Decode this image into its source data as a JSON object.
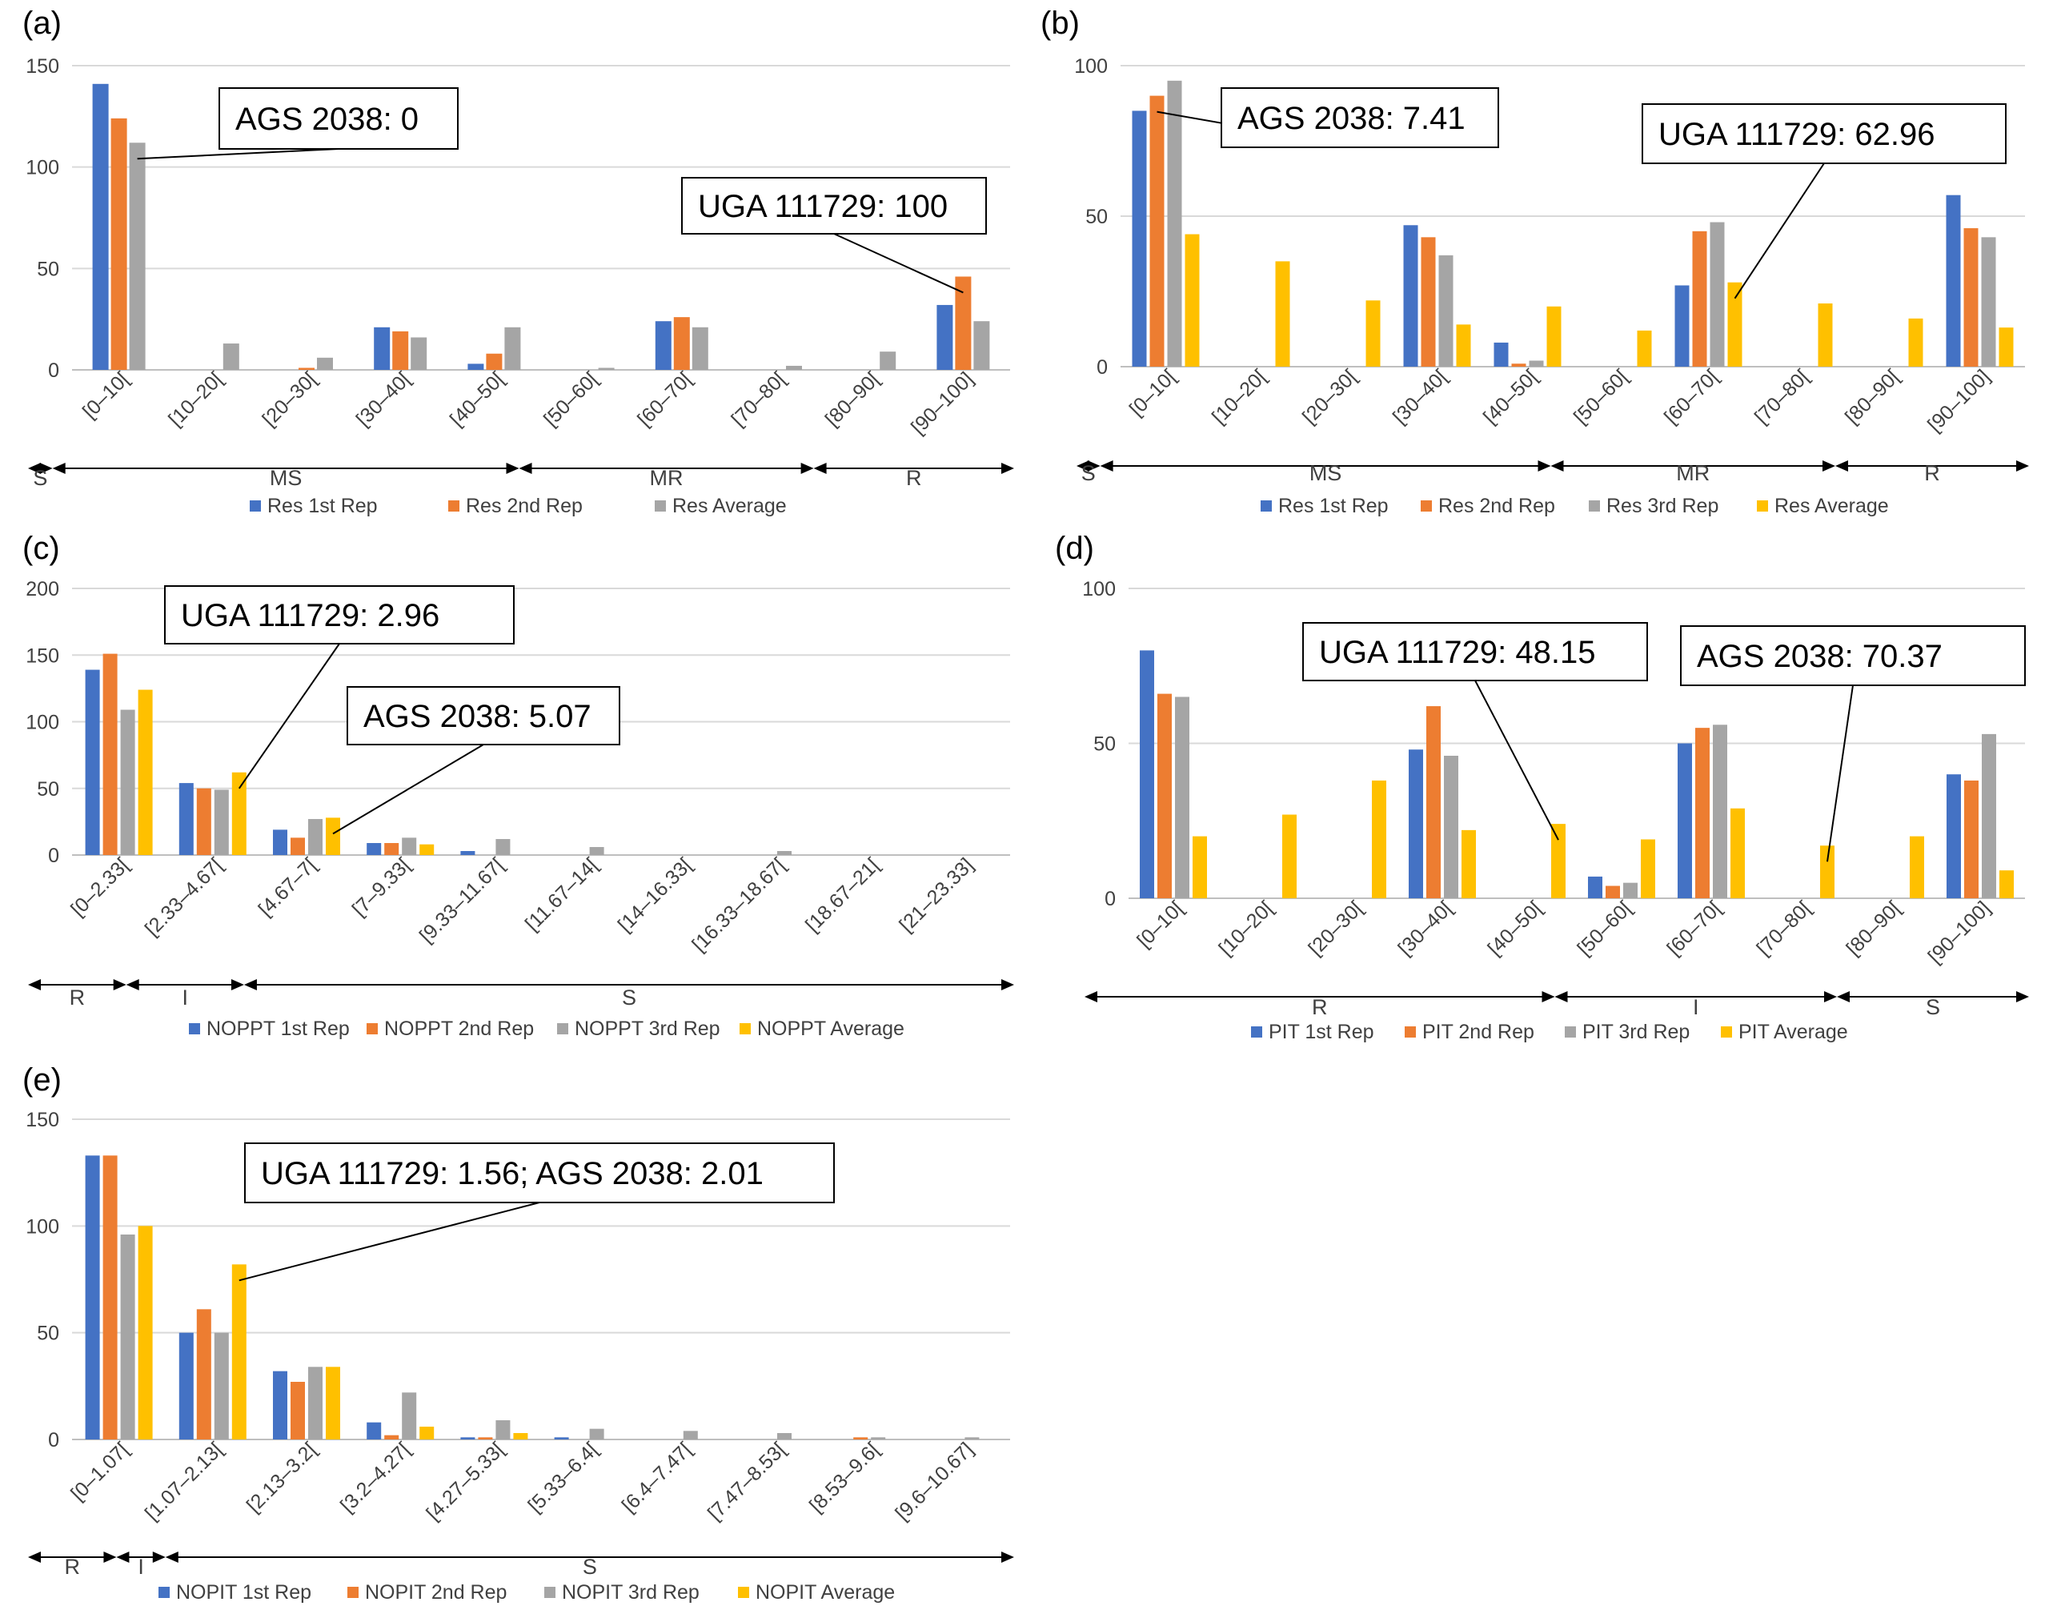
{
  "figure": {
    "colors": {
      "s1": "#4472C4",
      "s2": "#ED7D31",
      "s3": "#A5A5A5",
      "s4": "#FFC000",
      "grid": "#D9D9D9",
      "text": "#404040",
      "line": "#000000"
    }
  },
  "chart_data": [
    {
      "panel": "(a)",
      "type": "bar",
      "categories": [
        "[0–10[",
        "[10–20[",
        "[20–30[",
        "[30–40[",
        "[40–50[",
        "[50–60[",
        "[60–70[",
        "[70–80[",
        "[80–90[",
        "[90–100]"
      ],
      "ylim": [
        0,
        150
      ],
      "yticks": [
        0,
        50,
        100,
        150
      ],
      "series": [
        {
          "name": "Res 1st Rep",
          "color": "#4472C4",
          "values": [
            141,
            0,
            0,
            21,
            3,
            0,
            24,
            0,
            0,
            32
          ]
        },
        {
          "name": "Res 2nd Rep",
          "color": "#ED7D31",
          "values": [
            124,
            0,
            1,
            19,
            8,
            0,
            26,
            0,
            0,
            46
          ]
        },
        {
          "name": "Res Average",
          "color": "#A5A5A5",
          "values": [
            112,
            13,
            6,
            16,
            21,
            1,
            21,
            2,
            9,
            24
          ]
        }
      ],
      "groups": [
        {
          "label": "S",
          "from": 0,
          "to": 0.25
        },
        {
          "label": "MS",
          "from": 0.25,
          "to": 5
        },
        {
          "label": "MR",
          "from": 5,
          "to": 8
        },
        {
          "label": "R",
          "from": 8,
          "to": 10
        }
      ],
      "annotations": [
        {
          "text": "AGS 2038: 0",
          "cat": 0,
          "series": 2
        },
        {
          "text": "UGA 111729: 100",
          "cat": 9,
          "series": 1
        }
      ]
    },
    {
      "panel": "(b)",
      "type": "bar",
      "categories": [
        "[0–10[",
        "[10–20[",
        "[20–30[",
        "[30–40[",
        "[40–50[",
        "[50–60[",
        "[60–70[",
        "[70–80[",
        "[80–90[",
        "[90–100]"
      ],
      "ylim": [
        0,
        100
      ],
      "yticks": [
        0,
        50,
        100
      ],
      "series": [
        {
          "name": "Res 1st Rep",
          "color": "#4472C4",
          "values": [
            85,
            0,
            0,
            47,
            8,
            0,
            27,
            0,
            0,
            57
          ]
        },
        {
          "name": "Res 2nd Rep",
          "color": "#ED7D31",
          "values": [
            90,
            0,
            0,
            43,
            1,
            0,
            45,
            0,
            0,
            46
          ]
        },
        {
          "name": "Res 3rd Rep",
          "color": "#A5A5A5",
          "values": [
            95,
            0,
            0,
            37,
            2,
            0,
            48,
            0,
            0,
            43
          ]
        },
        {
          "name": "Res Average",
          "color": "#FFC000",
          "values": [
            44,
            35,
            22,
            14,
            20,
            12,
            28,
            21,
            16,
            13
          ]
        }
      ],
      "groups": [
        {
          "label": "S",
          "from": 0,
          "to": 0.25
        },
        {
          "label": "MS",
          "from": 0.25,
          "to": 5
        },
        {
          "label": "MR",
          "from": 5,
          "to": 8
        },
        {
          "label": "R",
          "from": 8,
          "to": 10
        }
      ],
      "annotations": [
        {
          "text": "AGS 2038: 7.41",
          "cat": 0,
          "series": 1
        },
        {
          "text": "UGA 111729: 62.96",
          "cat": 6,
          "series": 3
        }
      ]
    },
    {
      "panel": "(c)",
      "type": "bar",
      "categories": [
        "[0–2.33[",
        "[2.33–4.67[",
        "[4.67–7[",
        "[7–9.33[",
        "[9.33–11.67[",
        "[11.67–14[",
        "[14–16.33[",
        "[16.33–18.67[",
        "[18.67–21[",
        "[21–23.33]"
      ],
      "ylim": [
        0,
        200
      ],
      "yticks": [
        0,
        50,
        100,
        150,
        200
      ],
      "series": [
        {
          "name": "NOPPT 1st Rep",
          "color": "#4472C4",
          "values": [
            139,
            54,
            19,
            9,
            3,
            0,
            0,
            0,
            0,
            0
          ]
        },
        {
          "name": "NOPPT 2nd Rep",
          "color": "#ED7D31",
          "values": [
            151,
            50,
            13,
            9,
            0,
            0,
            0,
            0,
            0,
            0
          ]
        },
        {
          "name": "NOPPT 3rd Rep",
          "color": "#A5A5A5",
          "values": [
            109,
            49,
            27,
            13,
            12,
            6,
            0,
            3,
            0,
            0
          ]
        },
        {
          "name": "NOPPT Average",
          "color": "#FFC000",
          "values": [
            124,
            62,
            28,
            8,
            0,
            0,
            0,
            0,
            0,
            0
          ]
        }
      ],
      "groups": [
        {
          "label": "R",
          "from": 0,
          "to": 1
        },
        {
          "label": "I",
          "from": 1,
          "to": 2.2
        },
        {
          "label": "S",
          "from": 2.2,
          "to": 10
        }
      ],
      "annotations": [
        {
          "text": "UGA 111729: 2.96",
          "cat": 1,
          "series": 3
        },
        {
          "text": "AGS 2038: 5.07",
          "cat": 2,
          "series": 3
        }
      ]
    },
    {
      "panel": "(d)",
      "type": "bar",
      "categories": [
        "[0–10[",
        "[10–20[",
        "[20–30[",
        "[30–40[",
        "[40–50[",
        "[50–60[",
        "[60–70[",
        "[70–80[",
        "[80–90[",
        "[90–100]"
      ],
      "ylim": [
        0,
        100
      ],
      "yticks": [
        0,
        50,
        100
      ],
      "series": [
        {
          "name": "PIT 1st Rep",
          "color": "#4472C4",
          "values": [
            80,
            0,
            0,
            48,
            0,
            7,
            50,
            0,
            0,
            40
          ]
        },
        {
          "name": "PIT 2nd Rep",
          "color": "#ED7D31",
          "values": [
            66,
            0,
            0,
            62,
            0,
            4,
            55,
            0,
            0,
            38
          ]
        },
        {
          "name": "PIT 3rd Rep",
          "color": "#A5A5A5",
          "values": [
            65,
            0,
            0,
            46,
            0,
            5,
            56,
            0,
            0,
            53
          ]
        },
        {
          "name": "PIT Average",
          "color": "#FFC000",
          "values": [
            20,
            27,
            38,
            22,
            24,
            19,
            29,
            17,
            20,
            9
          ]
        }
      ],
      "groups": [
        {
          "label": "R",
          "from": 0,
          "to": 5
        },
        {
          "label": "I",
          "from": 5,
          "to": 8
        },
        {
          "label": "S",
          "from": 8,
          "to": 10
        }
      ],
      "annotations": [
        {
          "text": "UGA 111729: 48.15",
          "cat": 4,
          "series": 3
        },
        {
          "text": "AGS 2038: 70.37",
          "cat": 7,
          "series": 3
        }
      ]
    },
    {
      "panel": "(e)",
      "type": "bar",
      "categories": [
        "[0–1.07[",
        "[1.07–2.13[",
        "[2.13–3.2[",
        "[3.2–4.27[",
        "[4.27–5.33[",
        "[5.33–6.4[",
        "[6.4–7.47[",
        "[7.47–8.53[",
        "[8.53–9.6[",
        "[9.6–10.67]"
      ],
      "ylim": [
        0,
        150
      ],
      "yticks": [
        0,
        50,
        100,
        150
      ],
      "series": [
        {
          "name": "NOPIT 1st Rep",
          "color": "#4472C4",
          "values": [
            133,
            50,
            32,
            8,
            1,
            1,
            0,
            0,
            0,
            0
          ]
        },
        {
          "name": "NOPIT 2nd Rep",
          "color": "#ED7D31",
          "values": [
            133,
            61,
            27,
            2,
            1,
            0,
            0,
            0,
            1,
            0
          ]
        },
        {
          "name": "NOPIT 3rd Rep",
          "color": "#A5A5A5",
          "values": [
            96,
            50,
            34,
            22,
            9,
            5,
            4,
            3,
            1,
            1
          ]
        },
        {
          "name": "NOPIT Average",
          "color": "#FFC000",
          "values": [
            100,
            82,
            34,
            6,
            3,
            0,
            0,
            0,
            0,
            0
          ]
        }
      ],
      "groups": [
        {
          "label": "R",
          "from": 0,
          "to": 0.9
        },
        {
          "label": "I",
          "from": 0.9,
          "to": 1.4
        },
        {
          "label": "S",
          "from": 1.4,
          "to": 10
        }
      ],
      "annotations": [
        {
          "text": "UGA 111729: 1.56; AGS 2038: 2.01",
          "cat": 1,
          "series": 3
        }
      ]
    }
  ]
}
